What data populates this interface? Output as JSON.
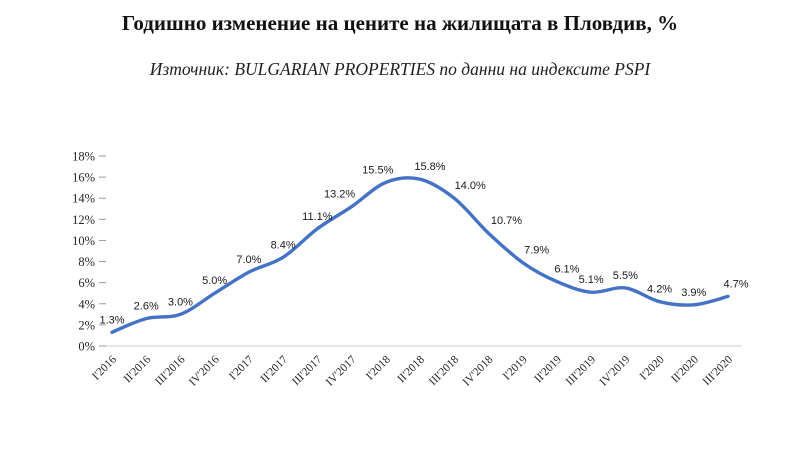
{
  "title": "Годишно изменение на цените на жилищата в Пловдив, %",
  "subtitle": "Източник: BULGARIAN PROPERTIES по данни на индексите PSPI",
  "chart_data": {
    "type": "line",
    "title": "Годишно изменение на цените на жилищата в Пловдив, %",
    "subtitle": "Източник: BULGARIAN PROPERTIES по данни на индексите PSPI",
    "categories": [
      "I'2016",
      "II'2016",
      "III'2016",
      "IV'2016",
      "I'2017",
      "II'2017",
      "III'2017",
      "IV'2017",
      "I'2018",
      "II'2018",
      "III'2018",
      "IV'2018",
      "I'2019",
      "II'2019",
      "III'2019",
      "IV'2019",
      "I'2020",
      "II'2020",
      "III'2020"
    ],
    "values": [
      1.3,
      2.6,
      3.0,
      5.0,
      7.0,
      8.4,
      11.1,
      13.2,
      15.5,
      15.8,
      14.0,
      10.7,
      7.9,
      6.1,
      5.1,
      5.5,
      4.2,
      3.9,
      4.7
    ],
    "point_labels": [
      "1.3%",
      "2.6%",
      "3.0%",
      "5.0%",
      "7.0%",
      "8.4%",
      "11.1%",
      "13.2%",
      "15.5%",
      "15.8%",
      "14.0%",
      "10.7%",
      "7.9%",
      "6.1%",
      "5.1%",
      "5.5%",
      "4.2%",
      "3.9%",
      "4.7%"
    ],
    "ylim": [
      0,
      18
    ],
    "ytick_step": 2,
    "ytick_suffix": "%",
    "ytick_labels": [
      "0%",
      "2%",
      "4%",
      "6%",
      "8%",
      "10%",
      "12%",
      "14%",
      "16%",
      "18%"
    ],
    "grid": false,
    "legend": "none",
    "line_color": "#4472C4",
    "label_color": "#1a1a1a",
    "axis_text_color": "#262626",
    "smooth": true,
    "label_dx": [
      0,
      0,
      0,
      0,
      0,
      0,
      0,
      -12,
      -8,
      10,
      16,
      18,
      14,
      10,
      0,
      0,
      0,
      0,
      8
    ]
  }
}
